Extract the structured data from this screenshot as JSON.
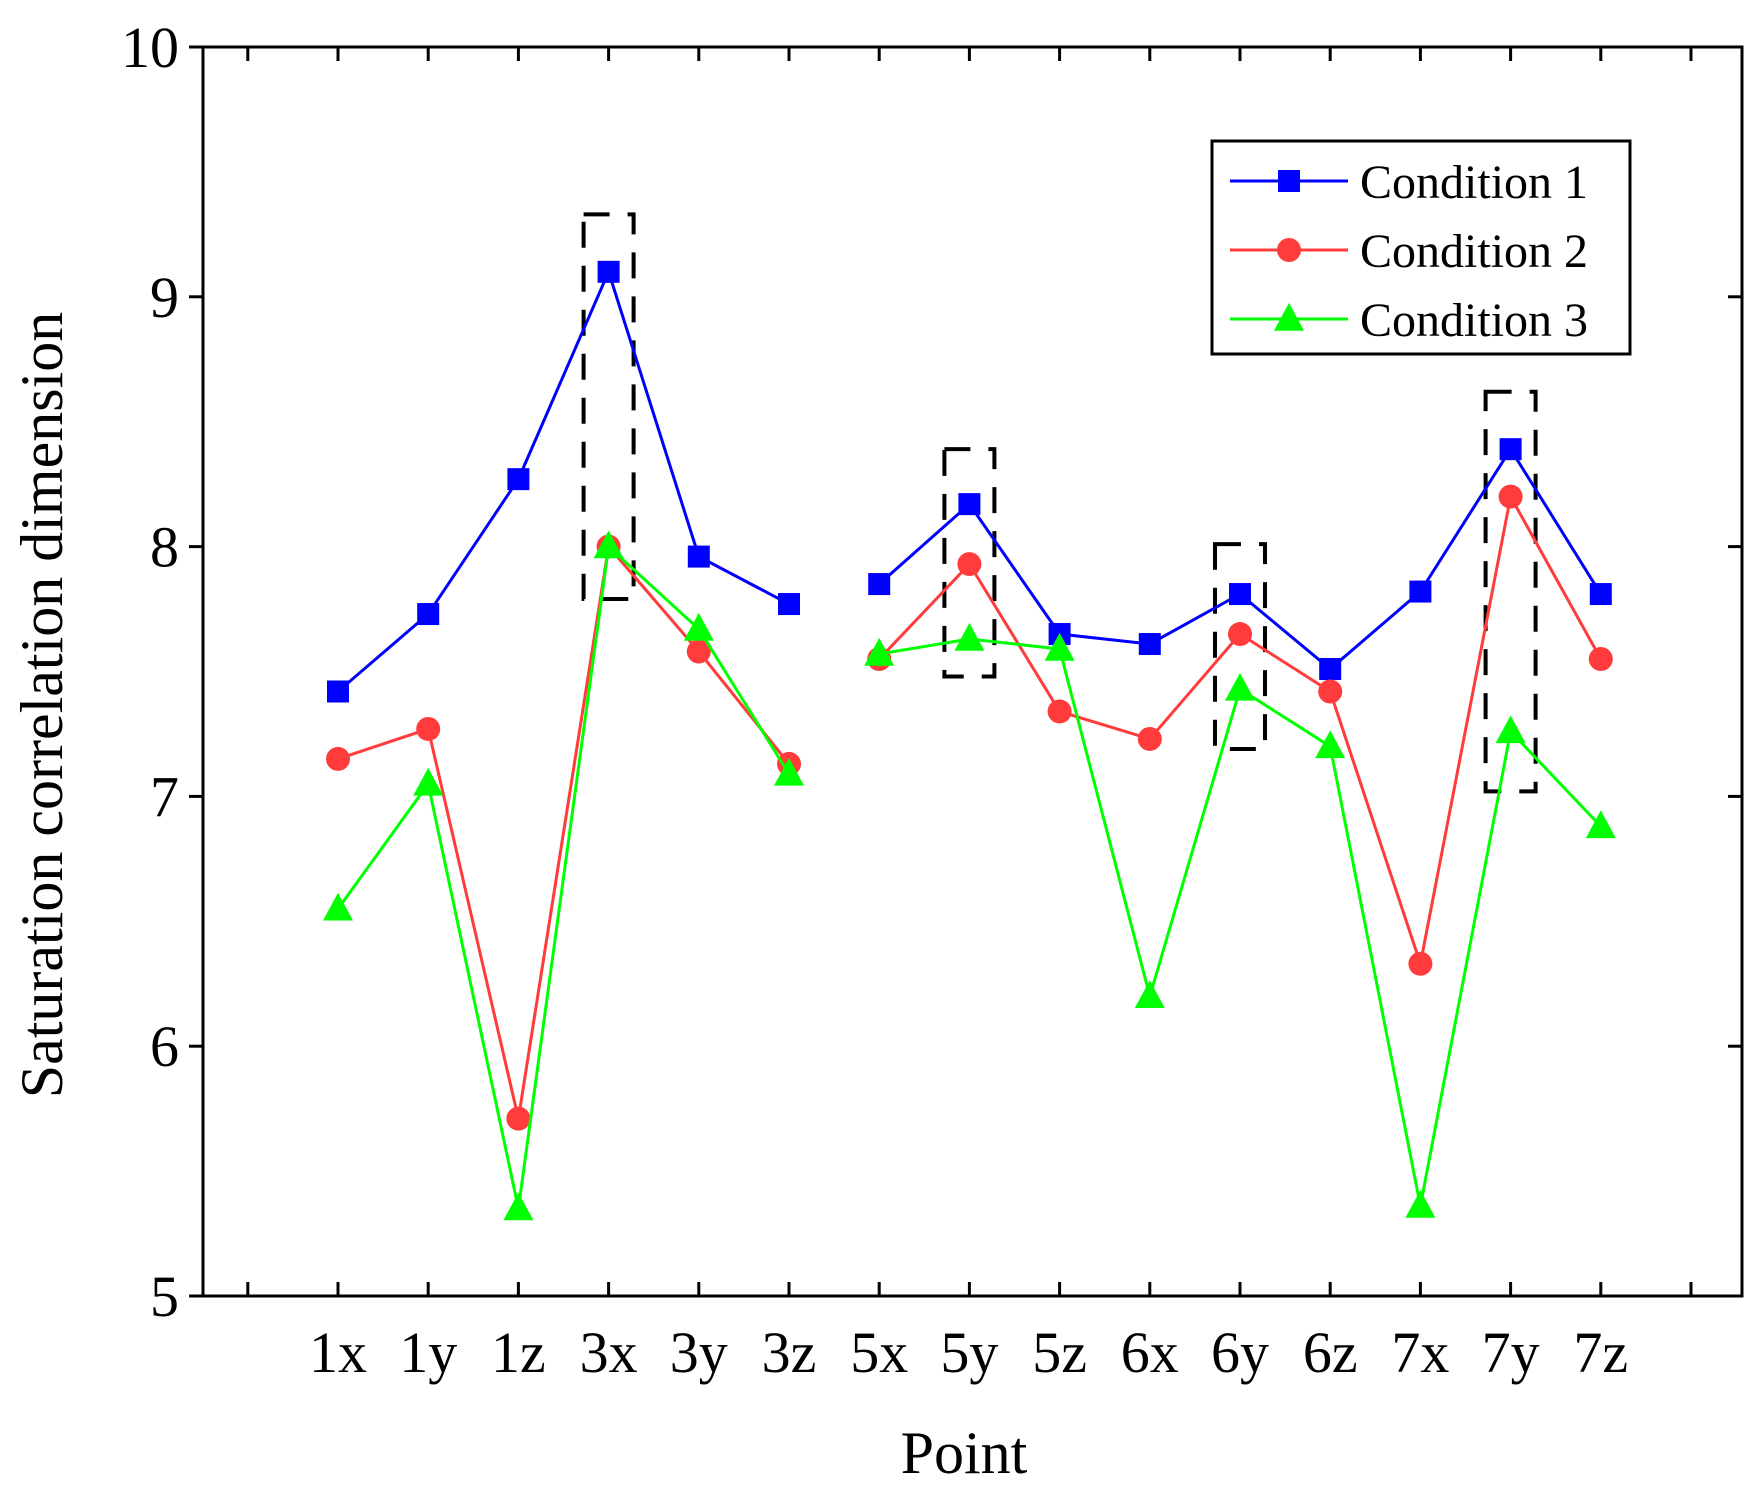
{
  "chart_data": {
    "type": "line",
    "title": "",
    "xlabel": "Point",
    "ylabel": "Saturation correlation dimension",
    "ylim": [
      5,
      10
    ],
    "yticks": [
      5,
      6,
      7,
      8,
      9,
      10
    ],
    "categories": [
      "1x",
      "1y",
      "1z",
      "3x",
      "3y",
      "3z",
      "5x",
      "5y",
      "5z",
      "6x",
      "6y",
      "6z",
      "7x",
      "7y",
      "7z"
    ],
    "legend_position": "top-right",
    "series": [
      {
        "name": "Condition 1",
        "color": "#0000ff",
        "marker": "square",
        "segments": [
          [
            0,
            5
          ],
          [
            6,
            14
          ]
        ],
        "values": [
          7.42,
          7.73,
          8.27,
          9.1,
          7.96,
          7.77,
          7.85,
          8.17,
          7.65,
          7.61,
          7.81,
          7.51,
          7.82,
          8.39,
          7.81
        ]
      },
      {
        "name": "Condition 2",
        "color": "#ff3b3b",
        "marker": "circle",
        "segments": [
          [
            0,
            5
          ],
          [
            6,
            14
          ]
        ],
        "values": [
          7.15,
          7.27,
          5.71,
          8.0,
          7.58,
          7.13,
          7.55,
          7.93,
          7.34,
          7.23,
          7.65,
          7.42,
          6.33,
          8.2,
          7.55
        ]
      },
      {
        "name": "Condition 3",
        "color": "#00ff00",
        "marker": "triangle",
        "segments": [
          [
            0,
            5
          ],
          [
            6,
            14
          ]
        ],
        "values": [
          6.55,
          7.05,
          5.35,
          8.0,
          7.67,
          7.09,
          7.57,
          7.63,
          7.59,
          6.2,
          7.43,
          7.2,
          5.36,
          7.26,
          6.88
        ]
      }
    ],
    "highlight_boxes": [
      {
        "category": "3x",
        "y_range": [
          7.79,
          9.33
        ]
      },
      {
        "category": "5y",
        "y_range": [
          7.48,
          8.39
        ]
      },
      {
        "category": "6y",
        "y_range": [
          7.19,
          8.01
        ]
      },
      {
        "category": "7y",
        "y_range": [
          7.02,
          8.62
        ]
      }
    ]
  }
}
